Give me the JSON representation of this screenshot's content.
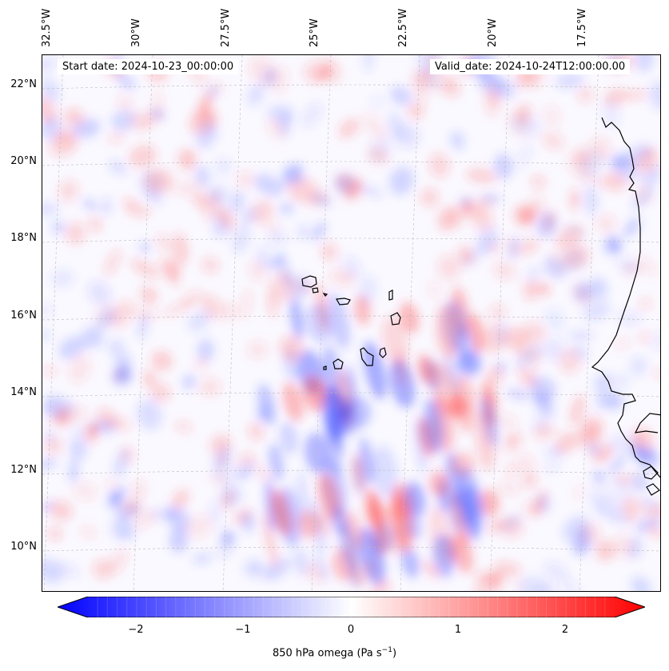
{
  "map": {
    "start_date": "Start date: 2024-10-23_00:00:00",
    "valid_date": "Valid_date: 2024-10-24T12:00:00.00",
    "lon_labels": [
      "32.5°W",
      "30°W",
      "27.5°W",
      "25°W",
      "22.5°W",
      "20°W",
      "17.5°W"
    ],
    "lat_labels": [
      "22°N",
      "20°N",
      "18°N",
      "16°N",
      "14°N",
      "12°N",
      "10°N"
    ],
    "colors": {
      "negative": "#0000ff",
      "neutral": "#ffffff",
      "positive": "#ff0000",
      "coast": "#000000",
      "grid": "#bbbbbb"
    }
  },
  "colorbar": {
    "ticks": [
      "−2",
      "−1",
      "0",
      "1",
      "2"
    ],
    "label": "850 hPa omega (Pa s",
    "label_sup": "−1",
    "label_end": ")",
    "range": [
      -2.6,
      2.6
    ]
  }
}
